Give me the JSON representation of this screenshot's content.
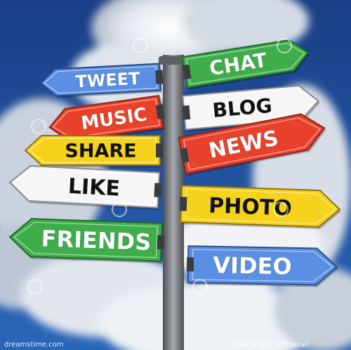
{
  "colors": {
    "sky": "#1d4f9a",
    "cloud": "#e8ecf2",
    "pole": "#6d7075",
    "blue_sign": "#5b8fe3",
    "green_sign": "#3fae4a",
    "red_sign": "#e8412c",
    "yellow_sign": "#f5d21c",
    "white_sign": "#f6f6f6"
  },
  "signs": [
    {
      "id": "tweet",
      "label": "TWEET",
      "color": "blue",
      "direction": "left"
    },
    {
      "id": "chat",
      "label": "CHAT",
      "color": "green",
      "direction": "right"
    },
    {
      "id": "music",
      "label": "MUSIC",
      "color": "red",
      "direction": "left"
    },
    {
      "id": "blog",
      "label": "BLOG",
      "color": "white",
      "direction": "right"
    },
    {
      "id": "share",
      "label": "SHARE",
      "color": "yellow",
      "direction": "left"
    },
    {
      "id": "news",
      "label": "NEWS",
      "color": "red",
      "direction": "right"
    },
    {
      "id": "like",
      "label": "LIKE",
      "color": "white",
      "direction": "left"
    },
    {
      "id": "photo",
      "label": "PHOTO",
      "color": "yellow",
      "direction": "right"
    },
    {
      "id": "friends",
      "label": "FRIENDS",
      "color": "green",
      "direction": "left"
    },
    {
      "id": "video",
      "label": "VIDEO",
      "color": "blue",
      "direction": "right"
    }
  ],
  "watermark": {
    "brand": "dreamstime",
    "site": "dreamstime.com",
    "id_text": "ID 32345678 © Scanrail"
  }
}
